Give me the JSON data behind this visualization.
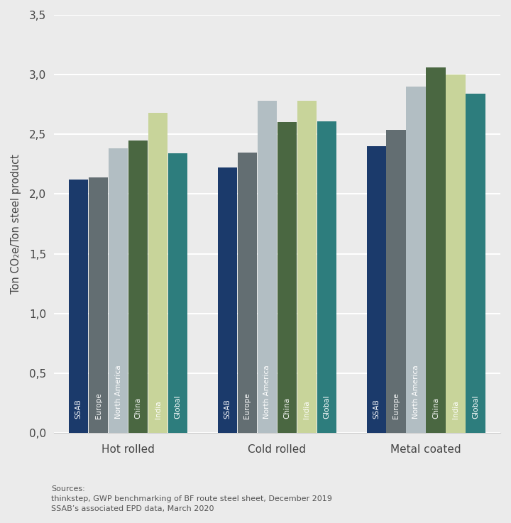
{
  "categories": [
    "Hot rolled",
    "Cold rolled",
    "Metal coated"
  ],
  "series": [
    "SSAB",
    "Europe",
    "North America",
    "China",
    "India",
    "Global"
  ],
  "values": {
    "Hot rolled": [
      2.12,
      2.14,
      2.38,
      2.45,
      2.68,
      2.34
    ],
    "Cold rolled": [
      2.22,
      2.35,
      2.78,
      2.6,
      2.78,
      2.61
    ],
    "Metal coated": [
      2.4,
      2.54,
      2.9,
      3.06,
      3.0,
      2.84
    ]
  },
  "bar_colors": [
    "#1b3a6b",
    "#636e72",
    "#b2bec3",
    "#4a6741",
    "#c8d49a",
    "#2d7d7d"
  ],
  "ylabel": "Ton CO₂e/Ton steel product",
  "ylim": [
    0,
    3.5
  ],
  "yticks": [
    0.0,
    0.5,
    1.0,
    1.5,
    2.0,
    2.5,
    3.0,
    3.5
  ],
  "ytick_labels": [
    "0,0",
    "0,5",
    "1,0",
    "1,5",
    "2,0",
    "2,5",
    "3,0",
    "3,5"
  ],
  "background_color": "#ebebeb",
  "grid_color": "#ffffff",
  "source_text": "Sources:\nthinkstep, GWP benchmarking of BF route steel sheet, December 2019\nSSAB’s associated EPD data, March 2020",
  "bar_label_fontsize": 7.5,
  "group_width": 0.8,
  "figsize": [
    7.2,
    7.37
  ],
  "dpi": 100
}
